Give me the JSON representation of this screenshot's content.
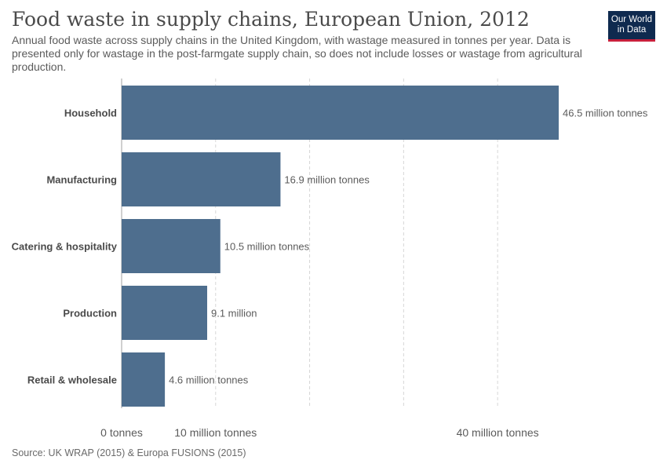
{
  "header": {
    "title": "Food waste in supply chains, European Union, 2012",
    "subtitle": "Annual food waste across supply chains in the United Kingdom, with wastage measured in tonnes per year. Data is presented only for wastage in the post-farmgate supply chain, so does not include losses or wastage from agricultural production.",
    "logo_line1": "Our World",
    "logo_line2": "in Data"
  },
  "footer": {
    "source": "Source: UK WRAP (2015) & Europa FUSIONS (2015)"
  },
  "colors": {
    "bar": "#4e6e8e",
    "logo_bg": "#0f2a4f",
    "logo_accent": "#c8203c"
  },
  "chart_data": {
    "type": "bar",
    "orientation": "horizontal",
    "title": "Food waste in supply chains, European Union, 2012",
    "categories": [
      "Household",
      "Manufacturing",
      "Catering & hospitality",
      "Production",
      "Retail & wholesale"
    ],
    "values": [
      46.5,
      16.9,
      10.5,
      9.1,
      4.6
    ],
    "data_labels": [
      "46.5 million tonnes",
      "16.9 million tonnes",
      "10.5 million tonnes",
      "9.1 million",
      "4.6 million tonnes"
    ],
    "unit": "million tonnes",
    "xlim": [
      0,
      46.5
    ],
    "x_ticks": [
      0,
      10,
      20,
      30,
      40
    ],
    "x_tick_labels": [
      "0 tonnes",
      "10 million tonnes",
      "",
      "",
      "40 million tonnes"
    ],
    "grid": true,
    "legend": "none"
  }
}
